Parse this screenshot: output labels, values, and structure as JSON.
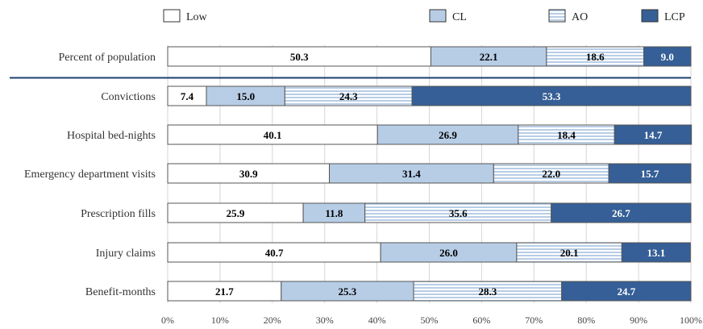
{
  "chart_data": {
    "type": "bar",
    "orientation": "horizontal",
    "stacked": "percent",
    "title": "",
    "xlabel": "",
    "ylabel": "",
    "xlim": [
      0,
      100
    ],
    "x_ticks": [
      "0%",
      "10%",
      "20%",
      "30%",
      "40%",
      "50%",
      "60%",
      "70%",
      "80%",
      "90%",
      "100%"
    ],
    "grid": "vertical",
    "legend_position": "top",
    "categories": [
      "Percent of population",
      "Convictions",
      "Hospital bed-nights",
      "Emergency department visits",
      "Prescription fills",
      "Injury claims",
      "Benefit-months"
    ],
    "series": [
      {
        "name": "Low",
        "color": "#ffffff",
        "pattern": "solid",
        "values": [
          50.3,
          7.4,
          40.1,
          30.9,
          25.9,
          40.7,
          21.7
        ]
      },
      {
        "name": "CL",
        "color": "#b7cde6",
        "pattern": "solid",
        "values": [
          22.1,
          15.0,
          26.9,
          31.4,
          11.8,
          26.0,
          25.3
        ]
      },
      {
        "name": "AO",
        "color": "#ffffff",
        "pattern": "horizontal-stripes",
        "values": [
          18.6,
          24.3,
          18.4,
          22.0,
          35.6,
          20.1,
          28.3
        ]
      },
      {
        "name": "LCP",
        "color": "#355f96",
        "pattern": "solid",
        "values": [
          9.0,
          53.3,
          14.7,
          15.7,
          26.7,
          13.1,
          24.7
        ]
      }
    ],
    "separator_after_category": "Percent of population"
  }
}
